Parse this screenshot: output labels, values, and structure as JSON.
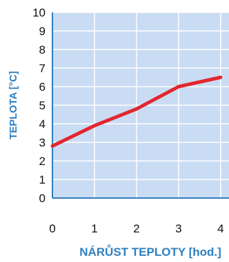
{
  "colors": {
    "plot_bg": "#c9dcf3",
    "grid": "#ffffff",
    "axis": "#2e7fc0",
    "line": "#e3262e",
    "text": "#111111",
    "title": "#2e7fc0"
  },
  "chart_data": {
    "type": "line",
    "title": "",
    "xlabel": "NÁRŮST TEPLOTY [hod.]",
    "ylabel": "TEPLOTA [°C]",
    "xlim": [
      0,
      4.2
    ],
    "ylim": [
      0,
      10
    ],
    "x_ticks": [
      "0",
      "1",
      "2",
      "3",
      "4"
    ],
    "y_ticks": [
      "0",
      "1",
      "2",
      "3",
      "4",
      "5",
      "6",
      "7",
      "8",
      "9",
      "10"
    ],
    "grid": true,
    "series": [
      {
        "x": [
          0,
          1,
          2,
          3,
          4
        ],
        "y": [
          2.8,
          3.9,
          4.8,
          6.0,
          6.5
        ]
      }
    ]
  }
}
